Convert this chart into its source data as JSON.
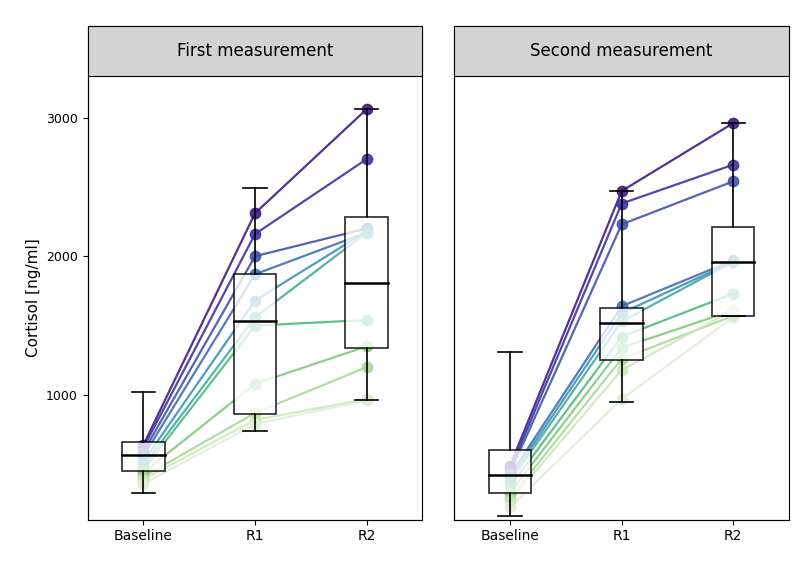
{
  "panels": [
    "First measurement",
    "Second measurement"
  ],
  "ylabel": "Cortisol [ng/ml]",
  "xtick_labels": [
    "Baseline",
    "R1",
    "R2"
  ],
  "ylim": [
    100,
    3300
  ],
  "yticks": [
    1000,
    2000,
    3000
  ],
  "panel_title_bg": "#d3d3d3",
  "background_color": "#ffffff",
  "line_colors": [
    "#3d1580",
    "#3a2d9f",
    "#3d4eac",
    "#3a6ab5",
    "#3b8fb8",
    "#3aaa9a",
    "#4ab87a",
    "#7dc87a",
    "#a8d89a",
    "#cce8b8",
    "#e0eed8"
  ],
  "panel1_lines": [
    [
      640,
      2310,
      3060
    ],
    [
      620,
      2160,
      2700
    ],
    [
      590,
      2000,
      2200
    ],
    [
      560,
      1870,
      2170
    ],
    [
      520,
      1680,
      2180
    ],
    [
      490,
      1560,
      2170
    ],
    [
      460,
      1500,
      1540
    ],
    [
      440,
      1080,
      1350
    ],
    [
      410,
      870,
      1200
    ],
    [
      390,
      820,
      970
    ],
    [
      360,
      790,
      960
    ]
  ],
  "panel2_lines": [
    [
      490,
      2470,
      2960
    ],
    [
      460,
      2380,
      2660
    ],
    [
      440,
      2230,
      2540
    ],
    [
      420,
      1640,
      1970
    ],
    [
      395,
      1590,
      1960
    ],
    [
      375,
      1530,
      1960
    ],
    [
      340,
      1420,
      1730
    ],
    [
      295,
      1340,
      1610
    ],
    [
      255,
      1260,
      1570
    ],
    [
      235,
      1180,
      1610
    ],
    [
      190,
      970,
      1560
    ]
  ],
  "panel1_boxplot": {
    "baseline": {
      "q1": 450,
      "q2": 565,
      "q3": 660,
      "whislo": 290,
      "whishi": 1020
    },
    "r1": {
      "q1": 860,
      "q2": 1530,
      "q3": 1870,
      "whislo": 740,
      "whishi": 2490
    },
    "r2": {
      "q1": 1340,
      "q2": 1810,
      "q3": 2280,
      "whislo": 960,
      "whishi": 3060
    }
  },
  "panel2_boxplot": {
    "baseline": {
      "q1": 295,
      "q2": 420,
      "q3": 600,
      "whislo": 130,
      "whishi": 1310
    },
    "r1": {
      "q1": 1250,
      "q2": 1520,
      "q3": 1630,
      "whislo": 950,
      "whishi": 2470
    },
    "r2": {
      "q1": 1570,
      "q2": 1960,
      "q3": 2210,
      "whislo": 1570,
      "whishi": 2960
    }
  },
  "x_positions": [
    0,
    1,
    2
  ],
  "box_width": 0.38,
  "dot_size": 55,
  "line_width": 1.6,
  "line_alpha": 0.88
}
